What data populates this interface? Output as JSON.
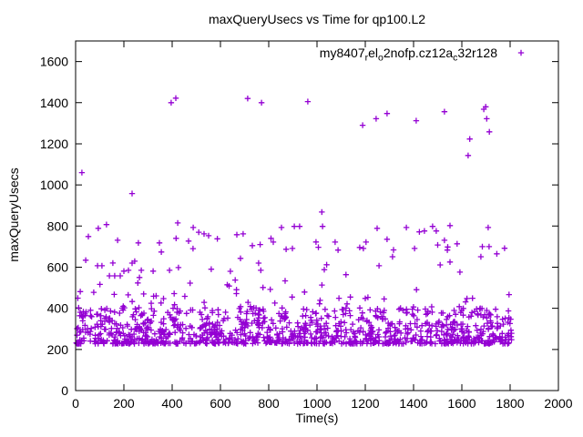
{
  "chart": {
    "title": "maxQueryUsecs vs Time for qp100.L2",
    "xlabel": "Time(s)",
    "ylabel": "maxQueryUsecs",
    "legend": {
      "plain": "my8407_rel_o2nofp.cz12a_c32r128",
      "segments": [
        {
          "text": "my8407"
        },
        {
          "sub": "r"
        },
        {
          "text": "el"
        },
        {
          "sub": "o"
        },
        {
          "text": "2nofp.cz12a"
        },
        {
          "sub": "c"
        },
        {
          "text": "32r128"
        }
      ],
      "marker": "plus"
    },
    "colors": {
      "marker": "#9400D3",
      "axis": "#000000",
      "background": "#ffffff"
    }
  },
  "chart_data": {
    "type": "scatter",
    "title": "maxQueryUsecs vs Time for qp100.L2",
    "xlabel": "Time(s)",
    "ylabel": "maxQueryUsecs",
    "series_name": "my8407_rel_o2nofp.cz12a_c32r128",
    "marker": "plus",
    "marker_color": "#9400D3",
    "xlim": [
      0,
      2000
    ],
    "ylim": [
      0,
      1700
    ],
    "xticks": [
      0,
      200,
      400,
      600,
      800,
      1000,
      1200,
      1400,
      1600,
      1800,
      2000
    ],
    "yticks": [
      0,
      200,
      400,
      600,
      800,
      1000,
      1200,
      1400,
      1600
    ],
    "grid": false,
    "legend_position": "top-right-inside",
    "time_span_of_data": [
      0,
      1810
    ],
    "outlier_points": [
      [
        26,
        1060
      ],
      [
        234,
        958
      ],
      [
        396,
        1400
      ],
      [
        415,
        1422
      ],
      [
        713,
        1420
      ],
      [
        770,
        1400
      ],
      [
        962,
        1405
      ],
      [
        1020,
        868
      ],
      [
        1189,
        1290
      ],
      [
        1245,
        1322
      ],
      [
        1290,
        1347
      ],
      [
        1411,
        1312
      ],
      [
        1528,
        1356
      ],
      [
        1626,
        1143
      ],
      [
        1633,
        1223
      ],
      [
        1691,
        1368
      ],
      [
        1699,
        1380
      ],
      [
        1703,
        1322
      ],
      [
        1714,
        1258
      ]
    ],
    "mid_points": [
      [
        42,
        634
      ],
      [
        53,
        749
      ],
      [
        91,
        607
      ],
      [
        94,
        789
      ],
      [
        109,
        607
      ],
      [
        128,
        807
      ],
      [
        140,
        558
      ],
      [
        162,
        558
      ],
      [
        174,
        731
      ],
      [
        185,
        558
      ],
      [
        200,
        581
      ],
      [
        219,
        585
      ],
      [
        234,
        620
      ],
      [
        245,
        629
      ],
      [
        260,
        718
      ],
      [
        272,
        585
      ],
      [
        321,
        581
      ],
      [
        347,
        718
      ],
      [
        355,
        674
      ],
      [
        389,
        585
      ],
      [
        423,
        815
      ],
      [
        426,
        598
      ],
      [
        468,
        727
      ],
      [
        487,
        793
      ],
      [
        510,
        770
      ],
      [
        532,
        762
      ],
      [
        551,
        753
      ],
      [
        562,
        590
      ],
      [
        641,
        580
      ],
      [
        668,
        758
      ],
      [
        683,
        643
      ],
      [
        694,
        762
      ],
      [
        732,
        705
      ],
      [
        758,
        620
      ],
      [
        767,
        585
      ],
      [
        819,
        722
      ],
      [
        853,
        793
      ],
      [
        872,
        687
      ],
      [
        898,
        691
      ],
      [
        906,
        798
      ],
      [
        928,
        798
      ],
      [
        1023,
        798
      ],
      [
        1040,
        612
      ],
      [
        1075,
        722
      ],
      [
        1087,
        683
      ],
      [
        1177,
        696
      ],
      [
        1192,
        691
      ],
      [
        1203,
        722
      ],
      [
        1249,
        789
      ],
      [
        1257,
        607
      ],
      [
        1290,
        736
      ],
      [
        1313,
        651
      ],
      [
        1370,
        793
      ],
      [
        1404,
        691
      ],
      [
        1445,
        776
      ],
      [
        1479,
        798
      ],
      [
        1494,
        776
      ],
      [
        1528,
        731
      ],
      [
        1540,
        683
      ],
      [
        1551,
        625
      ],
      [
        1551,
        802
      ],
      [
        1592,
        576
      ],
      [
        1679,
        651
      ],
      [
        1685,
        700
      ],
      [
        1709,
        793
      ],
      [
        1713,
        700
      ],
      [
        1745,
        665
      ],
      [
        1777,
        692
      ]
    ],
    "generated_layers": [
      {
        "name": "dense-band",
        "count": 1060,
        "t_range": [
          2,
          1808
        ],
        "v_range": [
          228,
          403
        ],
        "skew": 2.0,
        "seed": 11
      },
      {
        "name": "upper-fringe",
        "count": 58,
        "t_range": [
          4,
          1806
        ],
        "v_range": [
          400,
          560
        ],
        "skew": 1.4,
        "seed": 22
      },
      {
        "name": "sparse-mid",
        "count": 16,
        "t_range": [
          10,
          1800
        ],
        "v_range": [
          560,
          780
        ],
        "skew": 1.0,
        "seed": 33
      }
    ],
    "band_description": "dense band of samples roughly 228-400 usecs across entire time range 0-1810s"
  }
}
